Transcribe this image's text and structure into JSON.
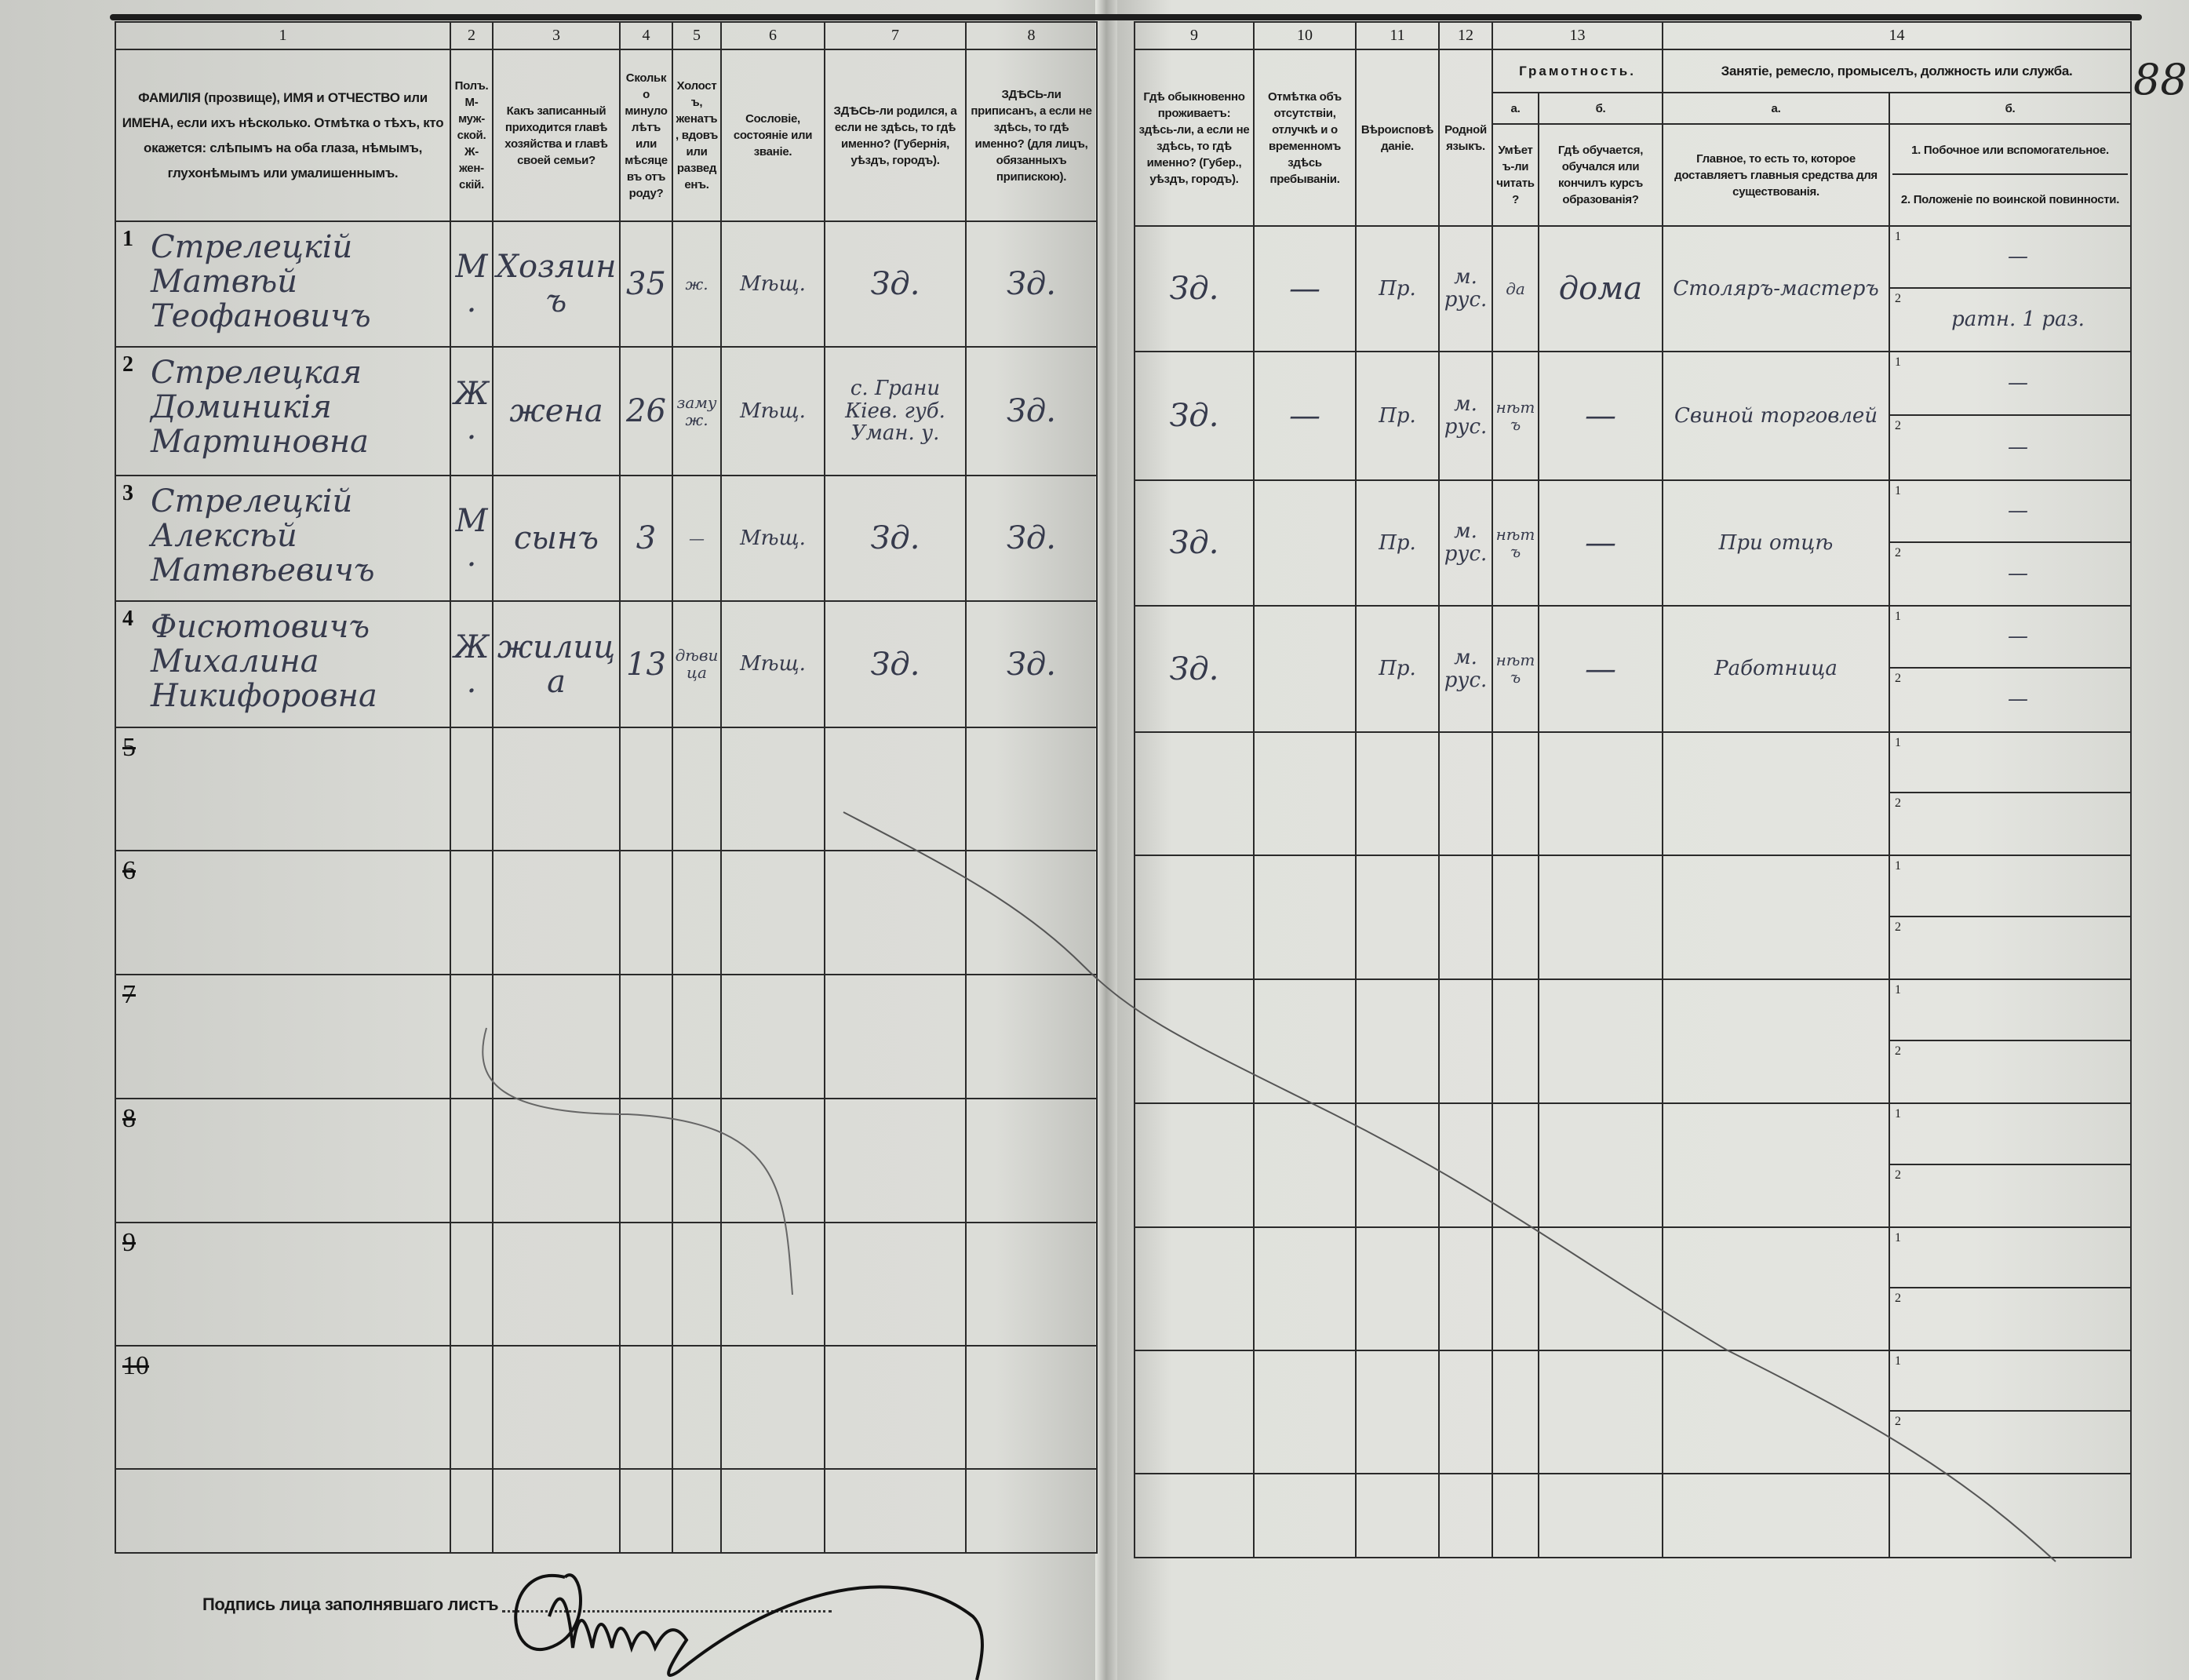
{
  "page_number": "88",
  "left_columns": [
    {
      "num": "1",
      "text": "ФАМИЛІЯ (прозвище), ИМЯ и ОТЧЕСТВО или ИМЕНА, если ихъ нѣсколько. Отмѣтка о тѣхъ, кто окажется: слѣпымъ на оба глаза, нѣмымъ, глухонѣмымъ или умалишеннымъ."
    },
    {
      "num": "2",
      "text": "Полъ. М-муж-ской. Ж-жен-скій."
    },
    {
      "num": "3",
      "text": "Какъ записанный приходится главѣ хозяйства и главѣ своей семьи?"
    },
    {
      "num": "4",
      "text": "Сколько минуло лѣтъ или мѣсяцевъ отъ роду?"
    },
    {
      "num": "5",
      "text": "Холостъ, женатъ, вдовъ или разведенъ."
    },
    {
      "num": "6",
      "text": "Сословіе, состояніе или званіе."
    },
    {
      "num": "7",
      "text": "ЗДѢСЬ-ли родился, а если не здѣсь, то гдѣ именно? (Губернія, уѣздъ, городъ)."
    },
    {
      "num": "8",
      "text": "ЗДѢСЬ-ли приписанъ, а если не здѣсь, то гдѣ именно? (для лицъ, обязанныхъ припискою)."
    }
  ],
  "right_columns": {
    "c9": {
      "num": "9",
      "text": "Гдѣ обыкновенно проживаетъ: здѣсь-ли, а если не здѣсь, то гдѣ именно? (Губер., уѣздъ, городъ)."
    },
    "c10": {
      "num": "10",
      "text": "Отмѣтка объ отсутствіи, отлучкѣ и о временномъ здѣсь пребываніи."
    },
    "c11": {
      "num": "11",
      "text": "Вѣроисповѣданіе."
    },
    "c12": {
      "num": "12",
      "text": "Родной языкъ."
    },
    "c13": {
      "num": "13",
      "title": "Грамотность.",
      "a": "а.",
      "b": "б.",
      "a_text": "Умѣетъ-ли читать?",
      "b_text": "Гдѣ обучается, обучался или кончилъ курсъ образованія?"
    },
    "c14": {
      "num": "14",
      "title": "Занятіе, ремесло, промыселъ, должность или служба.",
      "a": "а.",
      "b": "б.",
      "a_text": "Главное, то есть то, которое доставляетъ главныя средства для существованія.",
      "b1_text": "1. Побочное или вспомогательное.",
      "b2_text": "2. Положеніе по воинской повинности."
    }
  },
  "sub_labels": [
    "1",
    "2"
  ],
  "rows": [
    {
      "no": "1",
      "name": "Стрелецкій Матвѣй Теофановичъ",
      "sex": "М.",
      "relation": "Хозяинъ",
      "age": "35",
      "marital": "ж.",
      "estate": "Мѣщ.",
      "born": "Зд.",
      "registered": "Зд.",
      "residence": "Зд.",
      "absence": "—",
      "religion": "Пр.",
      "language": "м. рус.",
      "can_read": "да",
      "school": "дома",
      "occupation": "Столяръ-мастеръ",
      "secondary": "—",
      "military": "ратн. 1 раз."
    },
    {
      "no": "2",
      "name": "Стрелецкая Доминикія Мартиновна",
      "sex": "Ж.",
      "relation": "жена",
      "age": "26",
      "marital": "замуж.",
      "estate": "Мѣщ.",
      "born": "с. Грани Кіев. губ. Уман. у.",
      "registered": "Зд.",
      "residence": "Зд.",
      "absence": "—",
      "religion": "Пр.",
      "language": "м. рус.",
      "can_read": "нѣтъ",
      "school": "—",
      "occupation": "Свиной торговлей",
      "secondary": "—",
      "military": "—"
    },
    {
      "no": "3",
      "name": "Стрелецкій Алексѣй Матвѣевичъ",
      "sex": "М.",
      "relation": "сынъ",
      "age": "3",
      "marital": "—",
      "estate": "Мѣщ.",
      "born": "Зд.",
      "registered": "Зд.",
      "residence": "Зд.",
      "absence": "",
      "religion": "Пр.",
      "language": "м. рус.",
      "can_read": "нѣтъ",
      "school": "—",
      "occupation": "При отцѣ",
      "secondary": "—",
      "military": "—"
    },
    {
      "no": "4",
      "name": "Фисютовичъ Михалина Никифоровна",
      "sex": "Ж.",
      "relation": "жилица",
      "age": "13",
      "marital": "дѣвица",
      "estate": "Мѣщ.",
      "born": "Зд.",
      "registered": "Зд.",
      "residence": "Зд.",
      "absence": "",
      "religion": "Пр.",
      "language": "м. рус.",
      "can_read": "нѣтъ",
      "school": "—",
      "occupation": "Работница",
      "secondary": "—",
      "military": "—"
    },
    {
      "no": "5"
    },
    {
      "no": "6"
    },
    {
      "no": "7"
    },
    {
      "no": "8"
    },
    {
      "no": "9"
    },
    {
      "no": "10"
    }
  ],
  "footer": {
    "signature_label": "Подпись лица заполнявшаго листъ",
    "signature": "Шевченко"
  }
}
